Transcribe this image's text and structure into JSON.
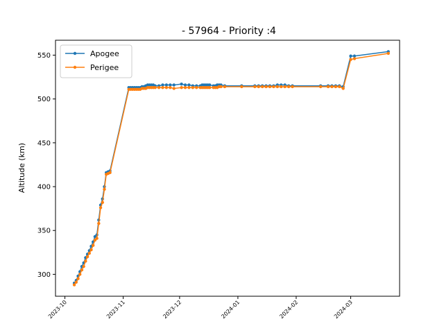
{
  "chart_data": {
    "type": "line",
    "title": "- 57964 - Priority :4",
    "xlabel": "",
    "ylabel": "Altitude (km)",
    "xlim": [
      "2023-09-26",
      "2024-03-27"
    ],
    "ylim": [
      275,
      567
    ],
    "x_ticks": [
      "2023-10",
      "2023-11",
      "2023-12",
      "2024-01",
      "2024-02",
      "2024-03"
    ],
    "y_ticks": [
      300,
      350,
      400,
      450,
      500,
      550
    ],
    "grid": false,
    "legend": "top-left",
    "series": [
      {
        "name": "Apogee",
        "color": "#1f77b4",
        "x": [
          "2023-10-06",
          "2023-10-07",
          "2023-10-08",
          "2023-10-09",
          "2023-10-10",
          "2023-10-11",
          "2023-10-12",
          "2023-10-13",
          "2023-10-14",
          "2023-10-15",
          "2023-10-16",
          "2023-10-17",
          "2023-10-18",
          "2023-10-19",
          "2023-10-20",
          "2023-10-21",
          "2023-10-22",
          "2023-10-23",
          "2023-10-24",
          "2023-10-25",
          "2023-11-04",
          "2023-11-05",
          "2023-11-06",
          "2023-11-07",
          "2023-11-08",
          "2023-11-09",
          "2023-11-10",
          "2023-11-11",
          "2023-11-12",
          "2023-11-13",
          "2023-11-14",
          "2023-11-15",
          "2023-11-16",
          "2023-11-17",
          "2023-11-18",
          "2023-11-20",
          "2023-11-22",
          "2023-11-24",
          "2023-11-26",
          "2023-11-28",
          "2023-12-02",
          "2023-12-04",
          "2023-12-06",
          "2023-12-08",
          "2023-12-10",
          "2023-12-12",
          "2023-12-13",
          "2023-12-14",
          "2023-12-15",
          "2023-12-16",
          "2023-12-17",
          "2023-12-19",
          "2023-12-20",
          "2023-12-21",
          "2023-12-22",
          "2023-12-23",
          "2023-12-25",
          "2024-01-03",
          "2024-01-10",
          "2024-01-12",
          "2024-01-14",
          "2024-01-16",
          "2024-01-18",
          "2024-01-20",
          "2024-01-22",
          "2024-01-24",
          "2024-01-26",
          "2024-01-28",
          "2024-01-30",
          "2024-02-14",
          "2024-02-18",
          "2024-02-20",
          "2024-02-22",
          "2024-02-24",
          "2024-02-26",
          "2024-03-01",
          "2024-03-03",
          "2024-03-21"
        ],
        "values": [
          290,
          293,
          298,
          303,
          309,
          313,
          319,
          323,
          327,
          332,
          337,
          343,
          345,
          362,
          379,
          386,
          400,
          416,
          417,
          418,
          513,
          513,
          513,
          513,
          513,
          513,
          513,
          514,
          514,
          515,
          516,
          516,
          516,
          516,
          515,
          515,
          516,
          516,
          516,
          516,
          517,
          516,
          516,
          515,
          515,
          515,
          516,
          516,
          516,
          516,
          516,
          515,
          515,
          516,
          516,
          516,
          515,
          515,
          515,
          515,
          515,
          515,
          515,
          515,
          516,
          516,
          516,
          515,
          515,
          515,
          515,
          515,
          515,
          515,
          514,
          549,
          549,
          554
        ]
      },
      {
        "name": "Perigee",
        "color": "#ff7f0e",
        "x": [
          "2023-10-06",
          "2023-10-07",
          "2023-10-08",
          "2023-10-09",
          "2023-10-10",
          "2023-10-11",
          "2023-10-12",
          "2023-10-13",
          "2023-10-14",
          "2023-10-15",
          "2023-10-16",
          "2023-10-17",
          "2023-10-18",
          "2023-10-19",
          "2023-10-20",
          "2023-10-21",
          "2023-10-22",
          "2023-10-23",
          "2023-10-24",
          "2023-10-25",
          "2023-11-04",
          "2023-11-05",
          "2023-11-06",
          "2023-11-07",
          "2023-11-08",
          "2023-11-09",
          "2023-11-10",
          "2023-11-11",
          "2023-11-12",
          "2023-11-13",
          "2023-11-14",
          "2023-11-15",
          "2023-11-16",
          "2023-11-17",
          "2023-11-18",
          "2023-11-20",
          "2023-11-22",
          "2023-11-24",
          "2023-11-26",
          "2023-11-28",
          "2023-12-02",
          "2023-12-04",
          "2023-12-06",
          "2023-12-08",
          "2023-12-10",
          "2023-12-12",
          "2023-12-13",
          "2023-12-14",
          "2023-12-15",
          "2023-12-16",
          "2023-12-17",
          "2023-12-19",
          "2023-12-20",
          "2023-12-21",
          "2023-12-22",
          "2023-12-23",
          "2023-12-25",
          "2024-01-03",
          "2024-01-10",
          "2024-01-12",
          "2024-01-14",
          "2024-01-16",
          "2024-01-18",
          "2024-01-20",
          "2024-01-22",
          "2024-01-24",
          "2024-01-26",
          "2024-01-28",
          "2024-01-30",
          "2024-02-14",
          "2024-02-18",
          "2024-02-20",
          "2024-02-22",
          "2024-02-24",
          "2024-02-26",
          "2024-03-01",
          "2024-03-03",
          "2024-03-21"
        ],
        "values": [
          288,
          291,
          295,
          300,
          305,
          309,
          315,
          320,
          324,
          328,
          333,
          339,
          341,
          358,
          376,
          382,
          397,
          414,
          415,
          416,
          511,
          511,
          511,
          511,
          511,
          511,
          511,
          512,
          512,
          512,
          513,
          513,
          513,
          513,
          513,
          513,
          513,
          513,
          513,
          512,
          513,
          513,
          513,
          513,
          513,
          513,
          513,
          513,
          513,
          513,
          513,
          513,
          513,
          513,
          514,
          514,
          514,
          514,
          514,
          514,
          514,
          514,
          514,
          514,
          514,
          514,
          514,
          514,
          514,
          514,
          514,
          514,
          514,
          514,
          512,
          545,
          546,
          552
        ]
      }
    ]
  }
}
